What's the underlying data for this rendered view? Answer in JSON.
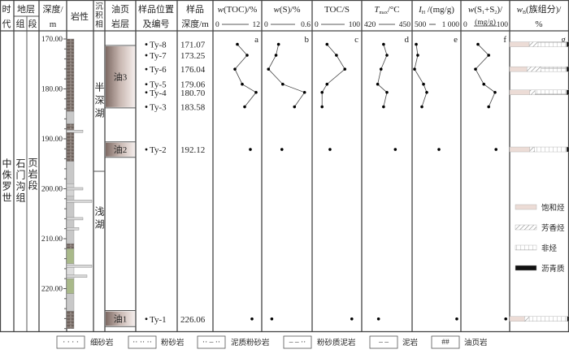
{
  "header": {
    "era": [
      "时",
      "代"
    ],
    "strata": "地层",
    "formation_col": "组",
    "member_col": "段",
    "depth": [
      "深度/",
      "m"
    ],
    "lithology": "岩性",
    "facies": [
      "沉",
      "积",
      "相"
    ],
    "oil_shale": [
      "油页",
      "岩层"
    ],
    "sample_pos": [
      "样品位置",
      "及编号"
    ],
    "sample_depth": [
      "样品",
      "深度/m"
    ],
    "group_title": "wB(族组分)/",
    "group_title_main": "w",
    "group_title_sub": "B",
    "group_title_rest": "(族组分)/",
    "group_unit": "%"
  },
  "strat": {
    "era": "中侏罗世",
    "formation": "石门沟组",
    "member": "页岩段"
  },
  "facies": [
    {
      "label": "半深湖",
      "top": 170,
      "bottom": 196.5
    },
    {
      "label": "浅湖",
      "top": 196.5,
      "bottom": 228
    }
  ],
  "oil_layers": [
    {
      "label": "油3",
      "top": 171.3,
      "bottom": 183.8
    },
    {
      "label": "油2",
      "top": 190.6,
      "bottom": 193.7
    },
    {
      "label": "油1",
      "top": 224.4,
      "bottom": 227.6
    }
  ],
  "depth_ticks": [
    "170.00",
    "180.00",
    "190.00",
    "200.00",
    "210.00",
    "220.00"
  ],
  "lithology": [
    {
      "type": "oil-shale",
      "top": 170,
      "bottom": 184.5
    },
    {
      "type": "mudstone",
      "top": 184.5,
      "bottom": 187
    },
    {
      "type": "oil-shale",
      "top": 187,
      "bottom": 194.5
    },
    {
      "type": "mudstone",
      "top": 194.5,
      "bottom": 199
    },
    {
      "type": "silty-mudstone",
      "top": 199,
      "bottom": 201.5
    },
    {
      "type": "mudstone",
      "top": 201.5,
      "bottom": 211
    },
    {
      "type": "oil-shale",
      "top": 211,
      "bottom": 212
    },
    {
      "type": "green-mudstone",
      "top": 212,
      "bottom": 215
    },
    {
      "type": "siltstone",
      "top": 215,
      "bottom": 218
    },
    {
      "type": "green-mudstone",
      "top": 218,
      "bottom": 221
    },
    {
      "type": "mudstone",
      "top": 221,
      "bottom": 224.5
    },
    {
      "type": "oil-shale",
      "top": 224.5,
      "bottom": 228
    }
  ],
  "samples": [
    {
      "id": "Ty-8",
      "depth": "171.07"
    },
    {
      "id": "Ty-7",
      "depth": "173.25"
    },
    {
      "id": "Ty-6",
      "depth": "176.04"
    },
    {
      "id": "Ty-5",
      "depth": "179.06"
    },
    {
      "id": "Ty-4",
      "depth": "180.70"
    },
    {
      "id": "Ty-3",
      "depth": "183.58"
    },
    {
      "id": "Ty-2",
      "depth": "192.12"
    },
    {
      "id": "Ty-1",
      "depth": "226.06"
    }
  ],
  "chart_data": [
    {
      "type": "line",
      "panel": "a",
      "title_main": "w",
      "title_rest": "(TOC)/%",
      "xlim": [
        0,
        12
      ],
      "min_label": "0",
      "max_label": "12",
      "values": [
        6.0,
        8.4,
        5.4,
        7.2,
        10.6,
        7.8,
        9.2,
        9.6
      ]
    },
    {
      "type": "line",
      "panel": "b",
      "title_main": "w",
      "title_rest": "(S)/%",
      "xlim": [
        0,
        0.6
      ],
      "min_label": "0",
      "max_label": "0.6",
      "values": [
        0.2,
        0.17,
        0.08,
        0.25,
        0.51,
        0.39,
        0.24,
        0.12
      ]
    },
    {
      "type": "line",
      "panel": "c",
      "title_main": "",
      "title_rest": "TOC/S",
      "xlim": [
        0,
        100
      ],
      "min_label": "0",
      "max_label": "100",
      "values": [
        30,
        49,
        66,
        30,
        20,
        20,
        36,
        80
      ]
    },
    {
      "type": "line",
      "panel": "d",
      "title_main": "T",
      "title_sub": "max",
      "title_rest": "/°C",
      "xlim": [
        420,
        450
      ],
      "min_label": "420",
      "max_label": "450",
      "values": [
        433,
        435,
        431.5,
        429.5,
        435,
        433,
        440,
        430
      ]
    },
    {
      "type": "line",
      "panel": "e",
      "title_main": "I",
      "title_sub": "H",
      "title_rest": " /(mg/g)",
      "xlim": [
        500,
        1000
      ],
      "min_label": "500",
      "max_label": "1 000",
      "values": [
        542,
        558,
        525,
        617,
        650,
        600,
        775,
        958
      ]
    },
    {
      "type": "line",
      "panel": "f",
      "title_main": "w",
      "title_rest": "(S1+S2)/",
      "title_parts": [
        "w",
        "(S",
        "1",
        "+S",
        "2",
        ")/"
      ],
      "unit": "(mg/g)",
      "xlim": [
        0,
        100
      ],
      "min_label": "0",
      "max_label": "100",
      "values": [
        35,
        57,
        30,
        47,
        70,
        57,
        72,
        92
      ]
    },
    {
      "type": "bar",
      "panel": "g",
      "stacked": true,
      "xlim": [
        0,
        100
      ],
      "samples": [
        "Ty-8",
        "Ty-6",
        "Ty-4",
        "Ty-2",
        "Ty-1"
      ],
      "series": [
        {
          "name": "饱和烃",
          "values": [
            33,
            29,
            34,
            34,
            25
          ],
          "color": "#ecdcd6"
        },
        {
          "name": "芳香烃",
          "values": [
            15,
            24,
            9,
            8,
            8
          ],
          "color": "hatch"
        },
        {
          "name": "非烃",
          "values": [
            48,
            43,
            53,
            54,
            64
          ],
          "color": "grid"
        },
        {
          "name": "沥青质",
          "values": [
            4,
            4,
            4,
            4,
            3
          ],
          "color": "#111111"
        }
      ]
    }
  ],
  "legend": [
    {
      "label": "细砂岩",
      "pattern": "· · · ·"
    },
    {
      "label": "粉砂岩",
      "pattern": "·· ·· ··"
    },
    {
      "label": "泥质粉砂岩",
      "pattern": "·· – ··"
    },
    {
      "label": "粉砂质泥岩",
      "pattern": "– – ··"
    },
    {
      "label": "泥岩",
      "pattern": "–  –"
    },
    {
      "label": "油页岩",
      "pattern": "##"
    }
  ],
  "colors": {
    "oil_layer": "#8a7670",
    "oil_shale": "#7a6e68",
    "mudstone": "#c8c8c8",
    "green": "#a9b98a",
    "sat": "#ecdcd6"
  }
}
